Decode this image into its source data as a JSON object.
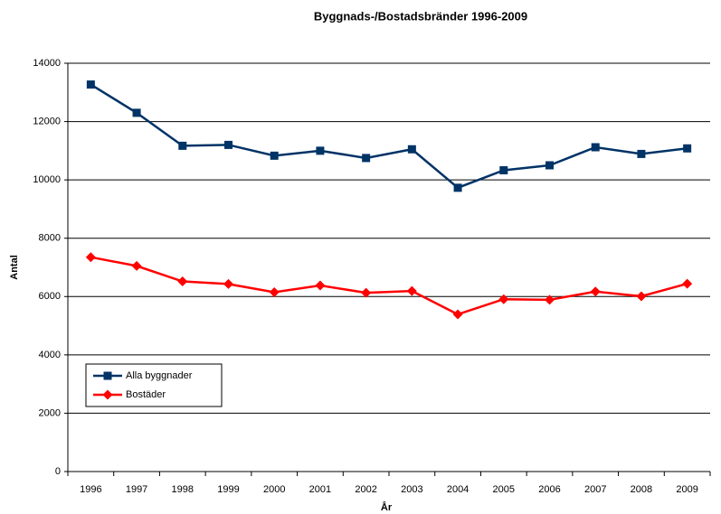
{
  "chart_data": {
    "type": "line",
    "title": "Byggnads-/Bostadsbränder 1996-2009",
    "x_label": "År",
    "y_label": "Antal",
    "categories": [
      "1996",
      "1997",
      "1998",
      "1999",
      "2000",
      "2001",
      "2002",
      "2003",
      "2004",
      "2005",
      "2006",
      "2007",
      "2008",
      "2009"
    ],
    "series": [
      {
        "name": "Alla byggnader",
        "color": "#003366",
        "marker": "square",
        "values": [
          13270,
          12300,
          11170,
          11200,
          10830,
          11000,
          10750,
          11050,
          9730,
          10330,
          10500,
          11120,
          10890,
          11080
        ]
      },
      {
        "name": "Bostäder",
        "color": "#ff0000",
        "marker": "diamond",
        "values": [
          7350,
          7050,
          6520,
          6430,
          6150,
          6380,
          6130,
          6190,
          5390,
          5910,
          5890,
          6170,
          6010,
          6440
        ]
      }
    ],
    "ylim": [
      0,
      14000
    ],
    "yticks": [
      0,
      2000,
      4000,
      6000,
      8000,
      10000,
      12000,
      14000
    ],
    "grid": true,
    "legend": "lower left"
  }
}
